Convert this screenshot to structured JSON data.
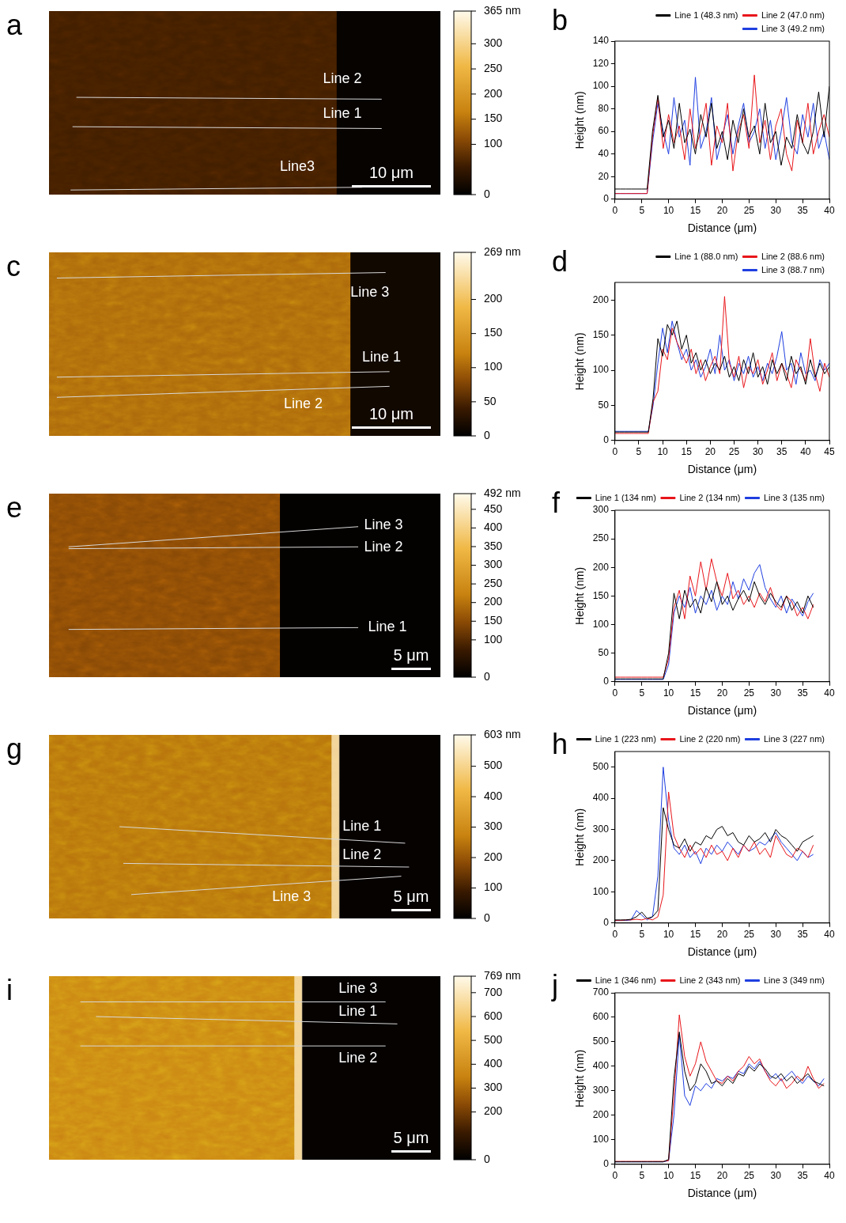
{
  "images": [
    {
      "panel_label": "a",
      "colorbar": {
        "range": [
          0,
          365
        ],
        "ticks": [
          0,
          100,
          150,
          200,
          250,
          300,
          {
            "value": 365,
            "label": "365 nm"
          }
        ]
      },
      "lines": [
        "Line 2",
        "Line 1",
        "Line3"
      ],
      "scale_bar": "10 μm"
    },
    {
      "panel_label": "c",
      "colorbar": {
        "range": [
          0,
          269
        ],
        "ticks": [
          0,
          50,
          100,
          150,
          200,
          {
            "value": 269,
            "label": "269 nm"
          }
        ]
      },
      "lines": [
        "Line 3",
        "Line 1",
        "Line 2"
      ],
      "scale_bar": "10 μm"
    },
    {
      "panel_label": "e",
      "colorbar": {
        "range": [
          0,
          492
        ],
        "ticks": [
          0,
          100,
          150,
          200,
          250,
          300,
          350,
          400,
          450,
          {
            "value": 492,
            "label": "492 nm"
          }
        ]
      },
      "lines": [
        "Line 3",
        "Line 2",
        "Line 1"
      ],
      "scale_bar": "5 μm"
    },
    {
      "panel_label": "g",
      "colorbar": {
        "range": [
          0,
          603
        ],
        "ticks": [
          0,
          100,
          200,
          300,
          400,
          500,
          {
            "value": 603,
            "label": "603 nm"
          }
        ]
      },
      "lines": [
        "Line 1",
        "Line 2",
        "Line 3"
      ],
      "scale_bar": "5 μm"
    },
    {
      "panel_label": "i",
      "colorbar": {
        "range": [
          0,
          769
        ],
        "ticks": [
          0,
          200,
          300,
          400,
          500,
          600,
          700,
          {
            "value": 769,
            "label": "769 nm"
          }
        ]
      },
      "lines": [
        "Line 3",
        "Line 1",
        "Line 2"
      ],
      "scale_bar": "5 μm"
    }
  ],
  "chart_data": [
    {
      "panel_label": "b",
      "type": "line",
      "x_label": "Distance (μm)",
      "y_label": "Height (nm)",
      "x": [
        0,
        1,
        2,
        3,
        4,
        5,
        6,
        7,
        8,
        9,
        10,
        11,
        12,
        13,
        14,
        15,
        16,
        17,
        18,
        19,
        20,
        21,
        22,
        23,
        24,
        25,
        26,
        27,
        28,
        29,
        30,
        31,
        32,
        33,
        34,
        35,
        36,
        37,
        38,
        39,
        40
      ],
      "series": [
        {
          "name": "Line 1 (48.3 nm)",
          "color": "#000000",
          "values": [
            9,
            9,
            9,
            9,
            9,
            9,
            9,
            60,
            92,
            55,
            70,
            45,
            85,
            50,
            62,
            40,
            75,
            55,
            85,
            45,
            60,
            35,
            70,
            50,
            80,
            55,
            65,
            40,
            85,
            50,
            60,
            30,
            55,
            45,
            75,
            50,
            40,
            60,
            95,
            55,
            100
          ]
        },
        {
          "name": "Line 2 (47.0 nm)",
          "color": "#e8161b",
          "values": [
            5,
            5,
            5,
            5,
            5,
            5,
            5,
            55,
            90,
            45,
            75,
            50,
            65,
            35,
            80,
            45,
            60,
            85,
            30,
            65,
            50,
            85,
            25,
            60,
            75,
            45,
            110,
            50,
            70,
            35,
            65,
            80,
            40,
            25,
            70,
            50,
            85,
            40,
            60,
            75,
            55
          ]
        },
        {
          "name": "Line 3 (49.2 nm)",
          "color": "#1f3fe0",
          "values": [
            5,
            5,
            5,
            5,
            5,
            5,
            5,
            50,
            85,
            60,
            40,
            90,
            55,
            70,
            30,
            108,
            45,
            60,
            90,
            35,
            55,
            75,
            40,
            65,
            85,
            50,
            60,
            80,
            45,
            70,
            35,
            60,
            90,
            50,
            40,
            75,
            55,
            85,
            45,
            60,
            35
          ]
        }
      ],
      "xlim": [
        0,
        40
      ],
      "xticks": [
        0,
        5,
        10,
        15,
        20,
        25,
        30,
        35,
        40
      ],
      "ylim": [
        0,
        140
      ],
      "yticks": [
        0,
        20,
        40,
        60,
        80,
        100,
        120,
        140
      ],
      "grid": false,
      "legend": "top-right"
    },
    {
      "panel_label": "d",
      "type": "line",
      "x_label": "Distance (μm)",
      "y_label": "Height (nm)",
      "x": [
        0,
        1,
        2,
        3,
        4,
        5,
        6,
        7,
        8,
        9,
        10,
        11,
        12,
        13,
        14,
        15,
        16,
        17,
        18,
        19,
        20,
        21,
        22,
        23,
        24,
        25,
        26,
        27,
        28,
        29,
        30,
        31,
        32,
        33,
        34,
        35,
        36,
        37,
        38,
        39,
        40,
        41,
        42,
        43,
        44,
        45
      ],
      "series": [
        {
          "name": "Line 1 (88.0 nm)",
          "color": "#000000",
          "values": [
            12,
            12,
            12,
            12,
            12,
            12,
            12,
            12,
            60,
            145,
            120,
            165,
            150,
            170,
            130,
            150,
            110,
            125,
            100,
            115,
            95,
            110,
            100,
            120,
            90,
            105,
            85,
            115,
            95,
            125,
            90,
            105,
            80,
            115,
            95,
            110,
            85,
            120,
            95,
            105,
            80,
            115,
            90,
            110,
            95,
            105
          ]
        },
        {
          "name": "Line 2 (88.6 nm)",
          "color": "#e8161b",
          "values": [
            10,
            10,
            10,
            10,
            10,
            10,
            10,
            10,
            55,
            70,
            130,
            115,
            160,
            140,
            125,
            110,
            130,
            95,
            115,
            85,
            105,
            120,
            95,
            205,
            110,
            90,
            120,
            75,
            105,
            95,
            115,
            80,
            100,
            125,
            85,
            110,
            95,
            75,
            115,
            100,
            85,
            145,
            95,
            70,
            110,
            90
          ]
        },
        {
          "name": "Line 3 (88.7 nm)",
          "color": "#1f3fe0",
          "values": [
            13,
            13,
            13,
            13,
            13,
            13,
            13,
            13,
            50,
            110,
            160,
            125,
            170,
            140,
            115,
            130,
            100,
            115,
            90,
            105,
            130,
            95,
            150,
            100,
            115,
            85,
            110,
            95,
            120,
            90,
            105,
            85,
            110,
            95,
            120,
            155,
            100,
            110,
            80,
            125,
            95,
            100,
            85,
            115,
            100,
            110
          ]
        }
      ],
      "xlim": [
        0,
        45
      ],
      "xticks": [
        0,
        5,
        10,
        15,
        20,
        25,
        30,
        35,
        40,
        45
      ],
      "ylim": [
        0,
        225
      ],
      "yticks": [
        0,
        50,
        100,
        150,
        200
      ],
      "grid": false,
      "legend": "top-right"
    },
    {
      "panel_label": "f",
      "type": "line",
      "x_label": "Distance (μm)",
      "y_label": "Height (nm)",
      "x": [
        0,
        1,
        2,
        3,
        4,
        5,
        6,
        7,
        8,
        9,
        10,
        11,
        12,
        13,
        14,
        15,
        16,
        17,
        18,
        19,
        20,
        21,
        22,
        23,
        24,
        25,
        26,
        27,
        28,
        29,
        30,
        31,
        32,
        33,
        34,
        35,
        36,
        37
      ],
      "series": [
        {
          "name": "Line 1 (134 nm)",
          "color": "#000000",
          "values": [
            5,
            5,
            5,
            5,
            5,
            5,
            5,
            5,
            5,
            5,
            50,
            155,
            110,
            160,
            130,
            145,
            120,
            165,
            140,
            175,
            135,
            150,
            125,
            145,
            160,
            140,
            175,
            150,
            135,
            155,
            140,
            130,
            150,
            125,
            140,
            120,
            150,
            130
          ]
        },
        {
          "name": "Line 2 (134 nm)",
          "color": "#e8161b",
          "values": [
            8,
            8,
            8,
            8,
            8,
            8,
            8,
            8,
            8,
            8,
            40,
            130,
            160,
            110,
            185,
            150,
            210,
            160,
            215,
            175,
            150,
            190,
            145,
            160,
            135,
            150,
            130,
            155,
            140,
            165,
            135,
            125,
            150,
            140,
            115,
            130,
            110,
            135
          ]
        },
        {
          "name": "Line 3 (135 nm)",
          "color": "#1f3fe0",
          "values": [
            4,
            4,
            4,
            4,
            4,
            4,
            4,
            4,
            4,
            4,
            30,
            120,
            150,
            130,
            165,
            120,
            150,
            135,
            160,
            125,
            150,
            135,
            175,
            145,
            180,
            160,
            190,
            205,
            165,
            145,
            130,
            150,
            120,
            145,
            130,
            115,
            140,
            155
          ]
        }
      ],
      "xlim": [
        0,
        40
      ],
      "xticks": [
        0,
        5,
        10,
        15,
        20,
        25,
        30,
        35,
        40
      ],
      "ylim": [
        0,
        300
      ],
      "yticks": [
        0,
        50,
        100,
        150,
        200,
        250,
        300
      ],
      "grid": false,
      "legend": "top-right"
    },
    {
      "panel_label": "h",
      "type": "line",
      "x_label": "Distance (μm)",
      "y_label": "Height (nm)",
      "x": [
        0,
        1,
        2,
        3,
        4,
        5,
        6,
        7,
        8,
        9,
        10,
        11,
        12,
        13,
        14,
        15,
        16,
        17,
        18,
        19,
        20,
        21,
        22,
        23,
        24,
        25,
        26,
        27,
        28,
        29,
        30,
        31,
        32,
        33,
        34,
        35,
        36,
        37
      ],
      "series": [
        {
          "name": "Line 1 (223 nm)",
          "color": "#000000",
          "values": [
            10,
            10,
            10,
            12,
            20,
            35,
            15,
            20,
            40,
            370,
            300,
            250,
            240,
            270,
            230,
            260,
            250,
            280,
            270,
            300,
            310,
            280,
            290,
            260,
            250,
            280,
            260,
            270,
            290,
            260,
            300,
            280,
            270,
            250,
            230,
            260,
            270,
            280
          ]
        },
        {
          "name": "Line 2 (220 nm)",
          "color": "#e8161b",
          "values": [
            8,
            8,
            10,
            10,
            12,
            10,
            15,
            10,
            20,
            90,
            420,
            280,
            240,
            210,
            250,
            220,
            240,
            210,
            250,
            220,
            230,
            200,
            240,
            210,
            250,
            230,
            260,
            220,
            240,
            210,
            280,
            250,
            220,
            210,
            240,
            230,
            210,
            250
          ]
        },
        {
          "name": "Line 3 (227 nm)",
          "color": "#1f3fe0",
          "values": [
            8,
            8,
            8,
            10,
            40,
            25,
            10,
            20,
            150,
            500,
            330,
            240,
            220,
            250,
            210,
            230,
            190,
            240,
            220,
            250,
            230,
            260,
            240,
            220,
            250,
            230,
            240,
            260,
            250,
            270,
            290,
            260,
            240,
            220,
            200,
            230,
            210,
            220
          ]
        }
      ],
      "xlim": [
        0,
        40
      ],
      "xticks": [
        0,
        5,
        10,
        15,
        20,
        25,
        30,
        35,
        40
      ],
      "ylim": [
        0,
        550
      ],
      "yticks": [
        0,
        100,
        200,
        300,
        400,
        500
      ],
      "grid": false,
      "legend": "top-right"
    },
    {
      "panel_label": "j",
      "type": "line",
      "x_label": "Distance (μm)",
      "y_label": "Height (nm)",
      "x": [
        0,
        1,
        2,
        3,
        4,
        5,
        6,
        7,
        8,
        9,
        10,
        11,
        12,
        13,
        14,
        15,
        16,
        17,
        18,
        19,
        20,
        21,
        22,
        23,
        24,
        25,
        26,
        27,
        28,
        29,
        30,
        31,
        32,
        33,
        34,
        35,
        36,
        37,
        38,
        39
      ],
      "series": [
        {
          "name": "Line 1 (346 nm)",
          "color": "#000000",
          "values": [
            10,
            10,
            10,
            10,
            10,
            10,
            10,
            10,
            10,
            10,
            20,
            350,
            540,
            380,
            300,
            330,
            410,
            380,
            330,
            340,
            320,
            350,
            330,
            370,
            360,
            400,
            380,
            410,
            390,
            360,
            350,
            370,
            340,
            360,
            330,
            350,
            370,
            340,
            330,
            320
          ]
        },
        {
          "name": "Line 2 (343 nm)",
          "color": "#e8161b",
          "values": [
            12,
            12,
            12,
            12,
            12,
            12,
            12,
            12,
            12,
            12,
            15,
            280,
            610,
            440,
            360,
            410,
            500,
            420,
            380,
            340,
            330,
            360,
            340,
            380,
            400,
            440,
            410,
            430,
            380,
            340,
            320,
            350,
            310,
            330,
            360,
            340,
            400,
            350,
            310,
            330
          ]
        },
        {
          "name": "Line 3 (349 nm)",
          "color": "#1f3fe0",
          "values": [
            10,
            10,
            10,
            10,
            10,
            10,
            10,
            10,
            10,
            10,
            15,
            200,
            530,
            280,
            240,
            320,
            300,
            330,
            310,
            350,
            340,
            360,
            350,
            380,
            370,
            410,
            390,
            420,
            380,
            350,
            370,
            340,
            360,
            380,
            350,
            330,
            360,
            340,
            320,
            350
          ]
        }
      ],
      "xlim": [
        0,
        40
      ],
      "xticks": [
        0,
        5,
        10,
        15,
        20,
        25,
        30,
        35,
        40
      ],
      "ylim": [
        0,
        700
      ],
      "yticks": [
        0,
        100,
        200,
        300,
        400,
        500,
        600,
        700
      ],
      "grid": false,
      "legend": "top-right"
    }
  ]
}
